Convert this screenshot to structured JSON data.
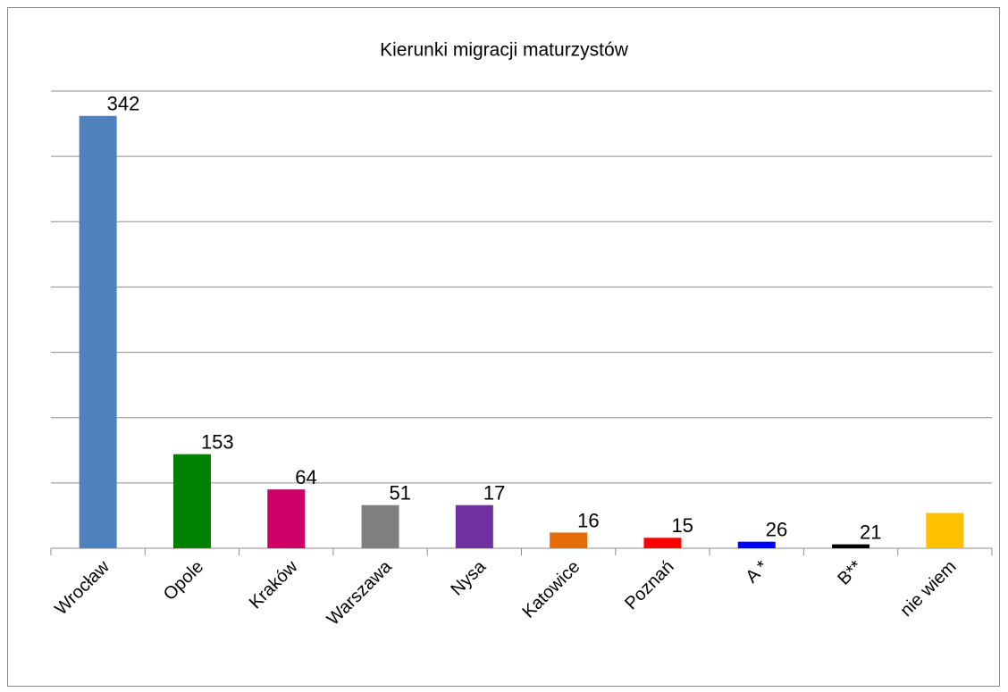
{
  "chart_data": {
    "type": "bar",
    "title": "Kierunki migracji maturzystów",
    "categories": [
      "Wrocław",
      "Opole",
      "Kraków",
      "Warszawa",
      "Nysa",
      "Katowice",
      "Poznań",
      "A *",
      "B**",
      "nie wiem"
    ],
    "values": [
      331,
      72,
      45,
      33,
      33,
      12,
      8,
      5,
      3,
      27
    ],
    "colors": [
      "#4f81bd",
      "#008000",
      "#cc0066",
      "#808080",
      "#7030a0",
      "#e36c09",
      "#ff0000",
      "#0000ff",
      "#000000",
      "#ffc000"
    ],
    "annotations": [
      "342",
      "153",
      "64",
      "51",
      "17",
      "16",
      "15",
      "26",
      "21"
    ],
    "ylim": [
      0,
      350
    ],
    "yticks": [
      0,
      50,
      100,
      150,
      200,
      250,
      300,
      350
    ],
    "grid": true
  }
}
